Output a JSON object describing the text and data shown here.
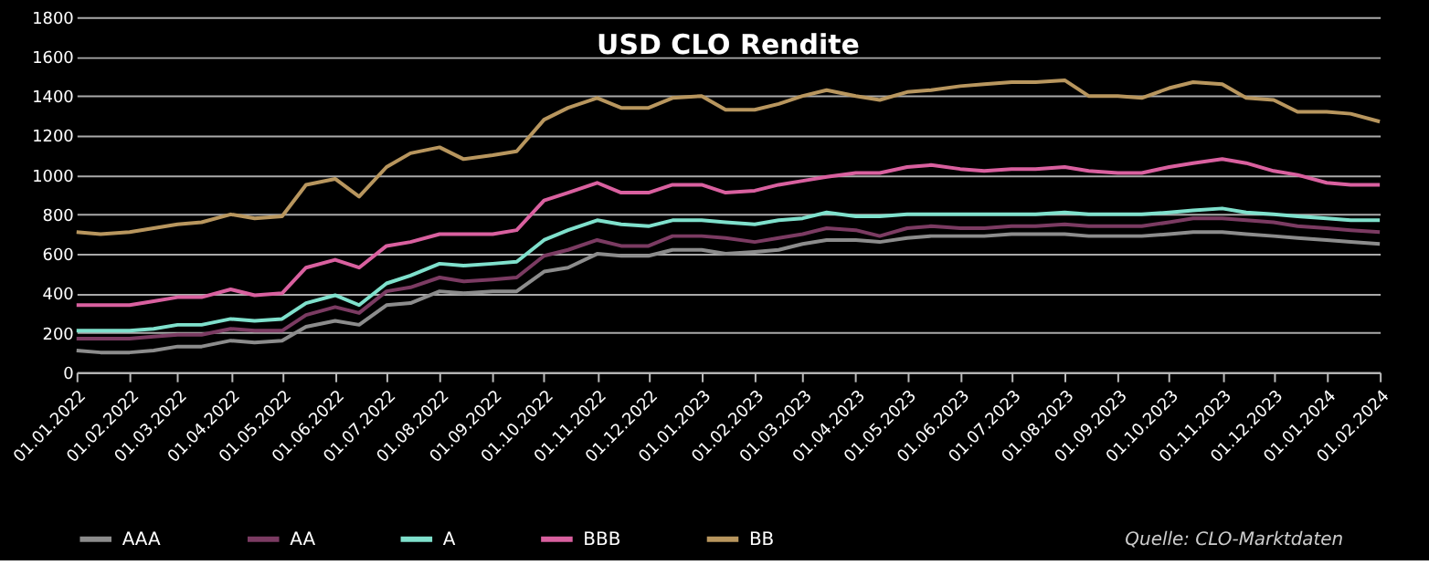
{
  "chart_data": {
    "type": "line",
    "title": "USD CLO Rendite",
    "x": [
      "2022-01-01",
      "2022-01-15",
      "2022-02-01",
      "2022-02-15",
      "2022-03-01",
      "2022-03-15",
      "2022-04-01",
      "2022-04-15",
      "2022-05-01",
      "2022-05-15",
      "2022-06-01",
      "2022-06-15",
      "2022-07-01",
      "2022-07-15",
      "2022-08-01",
      "2022-08-15",
      "2022-09-01",
      "2022-09-15",
      "2022-10-01",
      "2022-10-15",
      "2022-11-01",
      "2022-11-15",
      "2022-12-01",
      "2022-12-15",
      "2023-01-01",
      "2023-01-15",
      "2023-02-01",
      "2023-02-15",
      "2023-03-01",
      "2023-03-15",
      "2023-04-01",
      "2023-04-15",
      "2023-05-01",
      "2023-05-15",
      "2023-06-01",
      "2023-06-15",
      "2023-07-01",
      "2023-07-15",
      "2023-08-01",
      "2023-08-15",
      "2023-09-01",
      "2023-09-15",
      "2023-10-01",
      "2023-10-15",
      "2023-11-01",
      "2023-11-15",
      "2023-12-01",
      "2023-12-15",
      "2024-01-01",
      "2024-01-15",
      "2024-02-01"
    ],
    "series": [
      {
        "name": "AAA",
        "color": "#8c8c8c",
        "values": [
          110,
          100,
          100,
          110,
          130,
          130,
          160,
          150,
          160,
          230,
          260,
          240,
          340,
          350,
          410,
          400,
          410,
          410,
          510,
          530,
          600,
          590,
          590,
          620,
          620,
          600,
          610,
          620,
          650,
          670,
          670,
          660,
          680,
          690,
          690,
          690,
          700,
          700,
          700,
          690,
          690,
          690,
          700,
          710,
          710,
          700,
          690,
          680,
          670,
          660,
          650
        ]
      },
      {
        "name": "AA",
        "color": "#7b3b62",
        "values": [
          170,
          170,
          170,
          180,
          190,
          190,
          220,
          210,
          210,
          290,
          330,
          300,
          410,
          430,
          480,
          460,
          470,
          480,
          590,
          620,
          670,
          640,
          640,
          690,
          690,
          680,
          660,
          680,
          700,
          730,
          720,
          690,
          730,
          740,
          730,
          730,
          740,
          740,
          750,
          740,
          740,
          740,
          760,
          780,
          780,
          770,
          760,
          740,
          730,
          720,
          710
        ]
      },
      {
        "name": "A",
        "color": "#7fe0cc",
        "values": [
          210,
          210,
          210,
          220,
          240,
          240,
          270,
          260,
          270,
          350,
          390,
          340,
          450,
          490,
          550,
          540,
          550,
          560,
          670,
          720,
          770,
          750,
          740,
          770,
          770,
          760,
          750,
          770,
          780,
          810,
          790,
          790,
          800,
          800,
          800,
          800,
          800,
          800,
          810,
          800,
          800,
          800,
          810,
          820,
          830,
          810,
          800,
          790,
          780,
          770,
          770
        ]
      },
      {
        "name": "BBB",
        "color": "#d9609f",
        "values": [
          340,
          340,
          340,
          360,
          380,
          380,
          420,
          390,
          400,
          530,
          570,
          530,
          640,
          660,
          700,
          700,
          700,
          720,
          870,
          910,
          960,
          910,
          910,
          950,
          950,
          910,
          920,
          950,
          970,
          990,
          1010,
          1010,
          1040,
          1050,
          1030,
          1020,
          1030,
          1030,
          1040,
          1020,
          1010,
          1010,
          1040,
          1060,
          1080,
          1060,
          1020,
          1000,
          960,
          950,
          950
        ]
      },
      {
        "name": "BB",
        "color": "#b8965e",
        "values": [
          710,
          700,
          710,
          730,
          750,
          760,
          800,
          780,
          790,
          950,
          980,
          890,
          1040,
          1110,
          1140,
          1080,
          1100,
          1120,
          1280,
          1340,
          1390,
          1340,
          1340,
          1390,
          1400,
          1330,
          1330,
          1360,
          1400,
          1430,
          1400,
          1380,
          1420,
          1430,
          1450,
          1460,
          1470,
          1470,
          1480,
          1400,
          1400,
          1390,
          1440,
          1470,
          1460,
          1390,
          1380,
          1320,
          1320,
          1310,
          1270
        ]
      }
    ],
    "xlim": [
      "2022-01-01",
      "2024-02-01"
    ],
    "xticks": [
      {
        "value": "2022-01-01",
        "label": "01.01.2022"
      },
      {
        "value": "2022-02-01",
        "label": "01.02.2022"
      },
      {
        "value": "2022-03-01",
        "label": "01.03.2022"
      },
      {
        "value": "2022-04-01",
        "label": "01.04.2022"
      },
      {
        "value": "2022-05-01",
        "label": "01.05.2022"
      },
      {
        "value": "2022-06-01",
        "label": "01.06.2022"
      },
      {
        "value": "2022-07-01",
        "label": "01.07.2022"
      },
      {
        "value": "2022-08-01",
        "label": "01.08.2022"
      },
      {
        "value": "2022-09-01",
        "label": "01.09.2022"
      },
      {
        "value": "2022-10-01",
        "label": "01.10.2022"
      },
      {
        "value": "2022-11-01",
        "label": "01.11.2022"
      },
      {
        "value": "2022-12-01",
        "label": "01.12.2022"
      },
      {
        "value": "2023-01-01",
        "label": "01.01.2023"
      },
      {
        "value": "2023-02-01",
        "label": "01.02.2023"
      },
      {
        "value": "2023-03-01",
        "label": "01.03.2023"
      },
      {
        "value": "2023-04-01",
        "label": "01.04.2023"
      },
      {
        "value": "2023-05-01",
        "label": "01.05.2023"
      },
      {
        "value": "2023-06-01",
        "label": "01.06.2023"
      },
      {
        "value": "2023-07-01",
        "label": "01.07.2023"
      },
      {
        "value": "2023-08-01",
        "label": "01.08.2023"
      },
      {
        "value": "2023-09-01",
        "label": "01.09.2023"
      },
      {
        "value": "2023-10-01",
        "label": "01.10.2023"
      },
      {
        "value": "2023-11-01",
        "label": "01.11.2023"
      },
      {
        "value": "2023-12-01",
        "label": "01.12.2023"
      },
      {
        "value": "2024-01-01",
        "label": "01.01.2024"
      },
      {
        "value": "2024-02-01",
        "label": "01.02.2024"
      }
    ],
    "ylim": [
      0,
      1800
    ],
    "yticks": [
      0,
      200,
      400,
      600,
      800,
      1000,
      1200,
      1400,
      1600,
      1800
    ],
    "grid": "y",
    "legend": "bottom",
    "line_style": "solid",
    "annotations": [
      "Quelle: CLO-Marktdaten"
    ]
  }
}
